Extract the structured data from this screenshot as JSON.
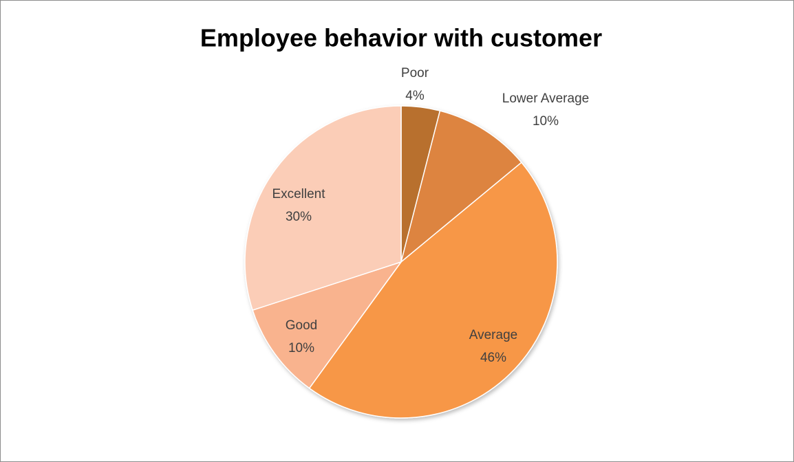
{
  "chart_data": {
    "type": "pie",
    "title": "Employee behavior with customer",
    "categories": [
      "Poor",
      "Lower Average",
      "Average",
      "Good",
      "Excellent"
    ],
    "values": [
      4,
      10,
      46,
      10,
      30
    ],
    "value_labels": [
      "4%",
      "10%",
      "46%",
      "10%",
      "30%"
    ],
    "colors": [
      "#b8702f",
      "#dd8440",
      "#f79747",
      "#f9b38e",
      "#fbcdb7"
    ]
  }
}
